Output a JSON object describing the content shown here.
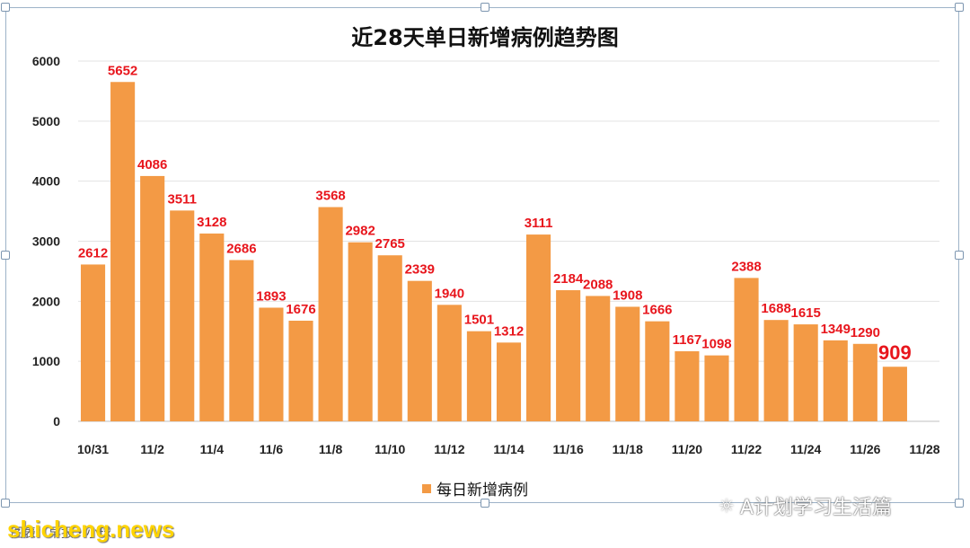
{
  "chart_data": {
    "type": "bar",
    "title": "近28天单日新增病例趋势图",
    "categories": [
      "10/31",
      "11/1",
      "11/2",
      "11/3",
      "11/4",
      "11/5",
      "11/6",
      "11/7",
      "11/8",
      "11/9",
      "11/10",
      "11/11",
      "11/12",
      "11/13",
      "11/14",
      "11/15",
      "11/16",
      "11/17",
      "11/18",
      "11/19",
      "11/20",
      "11/21",
      "11/22",
      "11/23",
      "11/24",
      "11/25",
      "11/26",
      "11/27"
    ],
    "x_tick_labels": [
      "10/31",
      "11/2",
      "11/4",
      "11/6",
      "11/8",
      "11/10",
      "11/12",
      "11/14",
      "11/16",
      "11/18",
      "11/20",
      "11/22",
      "11/24",
      "11/26",
      "11/28"
    ],
    "series": [
      {
        "name": "每日新增病例",
        "values": [
          2612,
          5652,
          4086,
          3511,
          3128,
          2686,
          1893,
          1676,
          3568,
          2982,
          2765,
          2339,
          1940,
          1501,
          1312,
          3111,
          2184,
          2088,
          1908,
          1666,
          1167,
          1098,
          2388,
          1688,
          1615,
          1349,
          1290,
          909
        ]
      }
    ],
    "ylim": [
      0,
      6000
    ],
    "yticks": [
      0,
      1000,
      2000,
      3000,
      4000,
      5000,
      6000
    ],
    "grid": true,
    "legend_position": "bottom",
    "bar_color": "#f39a45",
    "label_color": "#e8161d"
  },
  "watermark": {
    "text": "A计划学习生活篇"
  },
  "footer": {
    "source_text": "图表：早报・小球",
    "site_text": "shicheng.news"
  }
}
